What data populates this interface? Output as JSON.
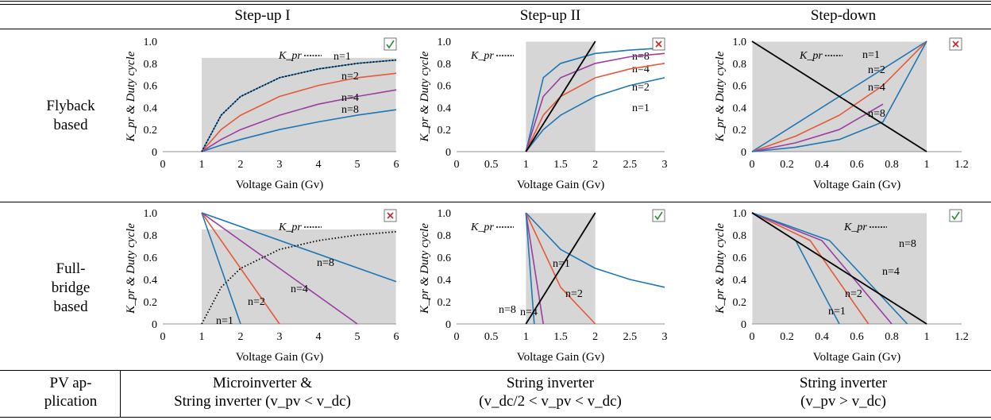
{
  "columns": [
    "Step-up I",
    "Step-up II",
    "Step-down"
  ],
  "rows": [
    "Flyback based",
    "Full-bridge based"
  ],
  "row_label_lines": [
    [
      "Flyback",
      "based"
    ],
    [
      "Full-",
      "bridge",
      "based"
    ]
  ],
  "footer_label_lines": [
    "PV ap-",
    "plication"
  ],
  "applications": [
    [
      "Microinverter &",
      "String inverter (v_pv < v_dc)"
    ],
    [
      "String inverter",
      "(v_dc/2 < v_pv < v_dc)"
    ],
    [
      "String inverter",
      "(v_pv > v_dc)"
    ]
  ],
  "xlabel": "Voltage Gain (Gv)",
  "ylabel": "K_pr & Duty cycle",
  "legend": "K_pr",
  "colors": {
    "n1": "#1f77b4",
    "n2": "#e45a3a",
    "n4": "#9b3ea2",
    "n8": "#1f77b4",
    "kpr": "#000000",
    "region": "#d6d6d6",
    "check": "#2e8b3a",
    "cross": "#d62728"
  },
  "chart_data": [
    {
      "id": "flyback-stepup1",
      "type": "line",
      "marker": "check",
      "xlim": [
        0,
        6
      ],
      "ylim": [
        0,
        1
      ],
      "xticks": [
        0,
        1,
        2,
        3,
        4,
        5,
        6
      ],
      "yticks": [
        0,
        0.2,
        0.4,
        0.6,
        0.8,
        1.0
      ],
      "shaded_region": {
        "x": [
          1,
          6
        ],
        "y": [
          0,
          0.85
        ]
      },
      "series": [
        {
          "name": "n=1",
          "x": [
            1,
            1.5,
            2,
            3,
            4,
            5,
            6
          ],
          "y": [
            0,
            0.33,
            0.5,
            0.67,
            0.75,
            0.8,
            0.83
          ]
        },
        {
          "name": "n=2",
          "x": [
            1,
            1.5,
            2,
            3,
            4,
            5,
            6
          ],
          "y": [
            0,
            0.2,
            0.33,
            0.5,
            0.6,
            0.67,
            0.71
          ]
        },
        {
          "name": "n=4",
          "x": [
            1,
            1.5,
            2,
            3,
            4,
            5,
            6
          ],
          "y": [
            0,
            0.11,
            0.2,
            0.33,
            0.43,
            0.5,
            0.56
          ]
        },
        {
          "name": "n=8",
          "x": [
            1,
            1.5,
            2,
            3,
            4,
            5,
            6
          ],
          "y": [
            0,
            0.06,
            0.11,
            0.2,
            0.27,
            0.33,
            0.38
          ]
        },
        {
          "name": "K_pr",
          "x": [
            1,
            1.5,
            2,
            3,
            4,
            5,
            6
          ],
          "y": [
            0,
            0.33,
            0.5,
            0.67,
            0.75,
            0.8,
            0.83
          ]
        }
      ]
    },
    {
      "id": "flyback-stepup2",
      "type": "line",
      "marker": "cross",
      "xlim": [
        0,
        3
      ],
      "ylim": [
        0,
        1
      ],
      "xticks": [
        0,
        0.5,
        1,
        1.5,
        2,
        2.5,
        3
      ],
      "yticks": [
        0,
        0.2,
        0.4,
        0.6,
        0.8,
        1.0
      ],
      "shaded_region": {
        "x": [
          1,
          2
        ],
        "y": [
          0,
          1
        ]
      },
      "series": [
        {
          "name": "n=8",
          "x": [
            1,
            1.25,
            1.5,
            2,
            2.5,
            3
          ],
          "y": [
            0,
            0.67,
            0.8,
            0.89,
            0.92,
            0.94
          ]
        },
        {
          "name": "n=4",
          "x": [
            1,
            1.25,
            1.5,
            2,
            2.5,
            3
          ],
          "y": [
            0,
            0.5,
            0.67,
            0.8,
            0.86,
            0.89
          ]
        },
        {
          "name": "n=2",
          "x": [
            1,
            1.25,
            1.5,
            2,
            2.5,
            3
          ],
          "y": [
            0,
            0.33,
            0.5,
            0.67,
            0.75,
            0.8
          ]
        },
        {
          "name": "n=1",
          "x": [
            1,
            1.25,
            1.5,
            2,
            2.5,
            3
          ],
          "y": [
            0,
            0.2,
            0.33,
            0.5,
            0.6,
            0.67
          ]
        },
        {
          "name": "K_pr",
          "x": [
            1,
            2
          ],
          "y": [
            0,
            1
          ]
        }
      ]
    },
    {
      "id": "flyback-stepdown",
      "type": "line",
      "marker": "cross",
      "xlim": [
        0,
        1.2
      ],
      "ylim": [
        0,
        1
      ],
      "xticks": [
        0,
        0.2,
        0.4,
        0.6,
        0.8,
        1,
        1.2
      ],
      "yticks": [
        0,
        0.2,
        0.4,
        0.6,
        0.8,
        1.0
      ],
      "shaded_region": {
        "x": [
          0,
          1
        ],
        "y": [
          0,
          1
        ]
      },
      "series": [
        {
          "name": "n=1",
          "x": [
            0,
            0.25,
            0.5,
            0.75,
            1
          ],
          "y": [
            0,
            0.25,
            0.5,
            0.75,
            1
          ]
        },
        {
          "name": "n=2",
          "x": [
            0,
            0.25,
            0.5,
            0.75,
            1
          ],
          "y": [
            0,
            0.14,
            0.33,
            0.6,
            1
          ]
        },
        {
          "name": "n=4",
          "x": [
            0,
            0.25,
            0.5,
            0.75
          ],
          "y": [
            0,
            0.08,
            0.2,
            0.43
          ]
        },
        {
          "name": "n=8",
          "x": [
            0,
            0.25,
            0.5,
            0.75,
            1
          ],
          "y": [
            0,
            0.04,
            0.11,
            0.27,
            1
          ]
        },
        {
          "name": "K_pr",
          "x": [
            0,
            1
          ],
          "y": [
            1,
            0
          ]
        }
      ]
    },
    {
      "id": "fullbridge-stepup1",
      "type": "line",
      "marker": "cross",
      "xlim": [
        0,
        6
      ],
      "ylim": [
        0,
        1
      ],
      "xticks": [
        0,
        1,
        2,
        3,
        4,
        5,
        6
      ],
      "yticks": [
        0,
        0.2,
        0.4,
        0.6,
        0.8,
        1.0
      ],
      "shaded_region": {
        "x": [
          1,
          6
        ],
        "y": [
          0,
          0.85
        ]
      },
      "series": [
        {
          "name": "n=1",
          "x": [
            1,
            1.5,
            2
          ],
          "y": [
            1,
            0.5,
            0
          ]
        },
        {
          "name": "n=2",
          "x": [
            1,
            2,
            3
          ],
          "y": [
            1,
            0.5,
            0
          ]
        },
        {
          "name": "n=4",
          "x": [
            1,
            3,
            5
          ],
          "y": [
            1,
            0.5,
            0
          ]
        },
        {
          "name": "n=8",
          "x": [
            1,
            6
          ],
          "y": [
            1,
            0.38
          ]
        },
        {
          "name": "K_pr",
          "x": [
            1,
            1.5,
            2,
            3,
            4,
            5,
            6
          ],
          "y": [
            0,
            0.33,
            0.5,
            0.67,
            0.75,
            0.8,
            0.83
          ]
        }
      ]
    },
    {
      "id": "fullbridge-stepup2",
      "type": "line",
      "marker": "check",
      "xlim": [
        0,
        3
      ],
      "ylim": [
        0,
        1
      ],
      "xticks": [
        0,
        0.5,
        1,
        1.5,
        2,
        2.5,
        3
      ],
      "yticks": [
        0,
        0.2,
        0.4,
        0.6,
        0.8,
        1.0
      ],
      "shaded_region": {
        "x": [
          1,
          2
        ],
        "y": [
          0,
          1
        ]
      },
      "series": [
        {
          "name": "n=1",
          "x": [
            1,
            1.5,
            2,
            2.5,
            3
          ],
          "y": [
            1,
            0.67,
            0.5,
            0.4,
            0.33
          ]
        },
        {
          "name": "n=2",
          "x": [
            1,
            1.5,
            2
          ],
          "y": [
            1,
            0.33,
            0
          ]
        },
        {
          "name": "n=4",
          "x": [
            1,
            1.25
          ],
          "y": [
            1,
            0
          ]
        },
        {
          "name": "n=8",
          "x": [
            1,
            1.12
          ],
          "y": [
            1,
            0
          ]
        },
        {
          "name": "K_pr",
          "x": [
            1,
            2
          ],
          "y": [
            0,
            1
          ]
        }
      ]
    },
    {
      "id": "fullbridge-stepdown",
      "type": "line",
      "marker": "check",
      "xlim": [
        0,
        1.2
      ],
      "ylim": [
        0,
        1
      ],
      "xticks": [
        0,
        0.2,
        0.4,
        0.6,
        0.8,
        1,
        1.2
      ],
      "yticks": [
        0,
        0.2,
        0.4,
        0.6,
        0.8,
        1.0
      ],
      "shaded_region": {
        "x": [
          0,
          1
        ],
        "y": [
          0,
          1
        ]
      },
      "series": [
        {
          "name": "n=1",
          "x": [
            0,
            0.25,
            0.5
          ],
          "y": [
            1,
            0.75,
            0
          ]
        },
        {
          "name": "n=2",
          "x": [
            0,
            0.333,
            0.667
          ],
          "y": [
            1,
            0.75,
            0
          ]
        },
        {
          "name": "n=4",
          "x": [
            0,
            0.4,
            0.8
          ],
          "y": [
            1,
            0.75,
            0
          ]
        },
        {
          "name": "n=8",
          "x": [
            0,
            0.444,
            0.889
          ],
          "y": [
            1,
            0.75,
            0
          ]
        },
        {
          "name": "K_pr",
          "x": [
            0,
            1
          ],
          "y": [
            1,
            0
          ]
        }
      ]
    }
  ]
}
